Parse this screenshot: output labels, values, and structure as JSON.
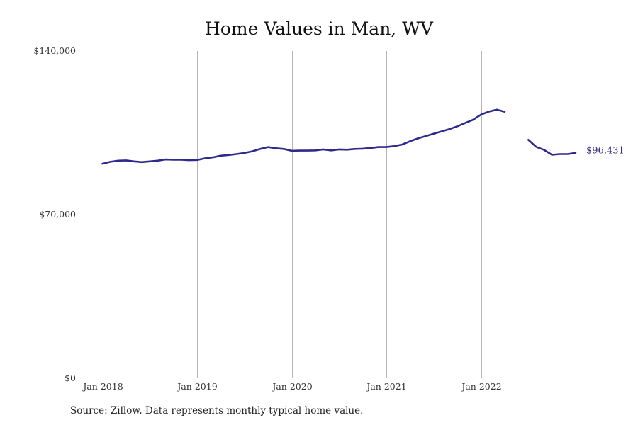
{
  "title": "Home Values in Man, WV",
  "source": "Source: Zillow. Data represents monthly typical home value.",
  "colors": {
    "line": "#2e2a8c",
    "grid": "#b5b5b5",
    "text": "#333333"
  },
  "chart_data": {
    "type": "line",
    "title": "Home Values in Man, WV",
    "xlabel": "",
    "ylabel": "",
    "ylim": [
      0,
      140000
    ],
    "y_ticks": [
      {
        "value": 0,
        "label": "$0"
      },
      {
        "value": 70000,
        "label": "$70,000"
      },
      {
        "value": 140000,
        "label": "$140,000"
      }
    ],
    "x_ticks": [
      {
        "value": "2018-01",
        "label": "Jan 2018"
      },
      {
        "value": "2019-01",
        "label": "Jan 2019"
      },
      {
        "value": "2020-01",
        "label": "Jan 2020"
      },
      {
        "value": "2021-01",
        "label": "Jan 2021"
      },
      {
        "value": "2022-01",
        "label": "Jan 2022"
      }
    ],
    "grid": "vertical at x ticks",
    "end_label": "$96,431",
    "series": [
      {
        "segments": [
          [
            [
              "2018-01",
              91800
            ],
            [
              "2018-02",
              92600
            ],
            [
              "2018-03",
              93100
            ],
            [
              "2018-04",
              93200
            ],
            [
              "2018-05",
              92800
            ],
            [
              "2018-06",
              92500
            ],
            [
              "2018-07",
              92800
            ],
            [
              "2018-08",
              93100
            ],
            [
              "2018-09",
              93600
            ],
            [
              "2018-10",
              93500
            ],
            [
              "2018-11",
              93500
            ],
            [
              "2018-12",
              93300
            ],
            [
              "2019-01",
              93400
            ],
            [
              "2019-02",
              94100
            ],
            [
              "2019-03",
              94500
            ],
            [
              "2019-04",
              95200
            ],
            [
              "2019-05",
              95500
            ],
            [
              "2019-06",
              95900
            ],
            [
              "2019-07",
              96400
            ],
            [
              "2019-08",
              97100
            ],
            [
              "2019-09",
              98100
            ],
            [
              "2019-10",
              98900
            ],
            [
              "2019-11",
              98400
            ],
            [
              "2019-12",
              98100
            ],
            [
              "2020-01",
              97300
            ],
            [
              "2020-02",
              97400
            ],
            [
              "2020-03",
              97400
            ],
            [
              "2020-04",
              97500
            ],
            [
              "2020-05",
              97900
            ],
            [
              "2020-06",
              97500
            ],
            [
              "2020-07",
              97900
            ],
            [
              "2020-08",
              97800
            ],
            [
              "2020-09",
              98100
            ],
            [
              "2020-10",
              98200
            ],
            [
              "2020-11",
              98500
            ],
            [
              "2020-12",
              98900
            ],
            [
              "2021-01",
              98900
            ],
            [
              "2021-02",
              99300
            ],
            [
              "2021-03",
              100000
            ],
            [
              "2021-04",
              101400
            ],
            [
              "2021-05",
              102600
            ],
            [
              "2021-06",
              103600
            ],
            [
              "2021-07",
              104600
            ],
            [
              "2021-08",
              105600
            ],
            [
              "2021-09",
              106600
            ],
            [
              "2021-10",
              107800
            ],
            [
              "2021-11",
              109200
            ],
            [
              "2021-12",
              110600
            ],
            [
              "2022-01",
              112800
            ],
            [
              "2022-02",
              114100
            ],
            [
              "2022-03",
              114900
            ],
            [
              "2022-04",
              114000
            ]
          ],
          [
            [
              "2022-07",
              102000
            ],
            [
              "2022-08",
              99000
            ],
            [
              "2022-09",
              97700
            ],
            [
              "2022-10",
              95600
            ],
            [
              "2022-11",
              95900
            ],
            [
              "2022-12",
              95900
            ],
            [
              "2023-01",
              96431
            ]
          ]
        ]
      }
    ]
  }
}
